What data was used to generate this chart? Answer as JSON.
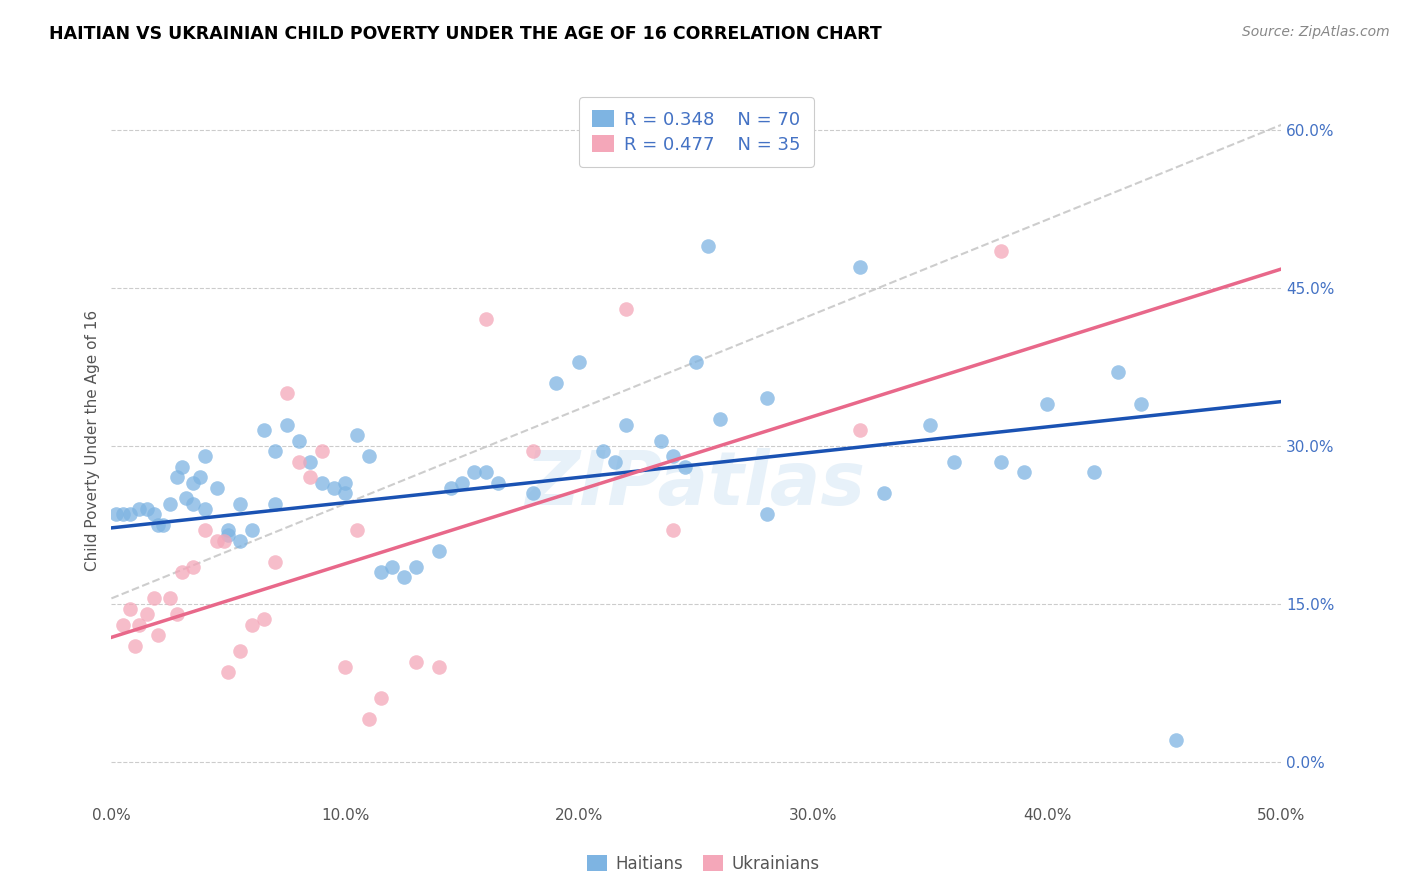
{
  "title": "HAITIAN VS UKRAINIAN CHILD POVERTY UNDER THE AGE OF 16 CORRELATION CHART",
  "source": "Source: ZipAtlas.com",
  "ylabel": "Child Poverty Under the Age of 16",
  "xlim": [
    0.0,
    0.5
  ],
  "ylim": [
    -0.04,
    0.65
  ],
  "xticks": [
    0.0,
    0.1,
    0.2,
    0.3,
    0.4,
    0.5
  ],
  "xticklabels": [
    "0.0%",
    "10.0%",
    "20.0%",
    "30.0%",
    "40.0%",
    "50.0%"
  ],
  "yticks_right": [
    0.0,
    0.15,
    0.3,
    0.45,
    0.6
  ],
  "yticklabels_right": [
    "0.0%",
    "15.0%",
    "30.0%",
    "45.0%",
    "60.0%"
  ],
  "legend_r_haitian": "R = 0.348",
  "legend_n_haitian": "N = 70",
  "legend_r_ukrainian": "R = 0.477",
  "legend_n_ukrainian": "N = 35",
  "haitian_color": "#7EB4E2",
  "ukrainian_color": "#F4A7B9",
  "haitian_line_color": "#1A52B3",
  "ukrainian_line_color": "#E8688A",
  "diagonal_line_color": "#C8C8C8",
  "watermark": "ZIPatlas",
  "haitian_points": [
    [
      0.002,
      0.235
    ],
    [
      0.005,
      0.235
    ],
    [
      0.008,
      0.235
    ],
    [
      0.012,
      0.24
    ],
    [
      0.015,
      0.24
    ],
    [
      0.018,
      0.235
    ],
    [
      0.02,
      0.225
    ],
    [
      0.022,
      0.225
    ],
    [
      0.025,
      0.245
    ],
    [
      0.028,
      0.27
    ],
    [
      0.03,
      0.28
    ],
    [
      0.032,
      0.25
    ],
    [
      0.035,
      0.245
    ],
    [
      0.035,
      0.265
    ],
    [
      0.038,
      0.27
    ],
    [
      0.04,
      0.29
    ],
    [
      0.04,
      0.24
    ],
    [
      0.045,
      0.26
    ],
    [
      0.05,
      0.215
    ],
    [
      0.05,
      0.22
    ],
    [
      0.055,
      0.21
    ],
    [
      0.055,
      0.245
    ],
    [
      0.06,
      0.22
    ],
    [
      0.065,
      0.315
    ],
    [
      0.07,
      0.295
    ],
    [
      0.07,
      0.245
    ],
    [
      0.075,
      0.32
    ],
    [
      0.08,
      0.305
    ],
    [
      0.085,
      0.285
    ],
    [
      0.09,
      0.265
    ],
    [
      0.095,
      0.26
    ],
    [
      0.1,
      0.255
    ],
    [
      0.1,
      0.265
    ],
    [
      0.105,
      0.31
    ],
    [
      0.11,
      0.29
    ],
    [
      0.115,
      0.18
    ],
    [
      0.12,
      0.185
    ],
    [
      0.125,
      0.175
    ],
    [
      0.13,
      0.185
    ],
    [
      0.14,
      0.2
    ],
    [
      0.145,
      0.26
    ],
    [
      0.15,
      0.265
    ],
    [
      0.155,
      0.275
    ],
    [
      0.16,
      0.275
    ],
    [
      0.165,
      0.265
    ],
    [
      0.18,
      0.255
    ],
    [
      0.19,
      0.36
    ],
    [
      0.2,
      0.38
    ],
    [
      0.21,
      0.295
    ],
    [
      0.215,
      0.285
    ],
    [
      0.22,
      0.32
    ],
    [
      0.235,
      0.305
    ],
    [
      0.24,
      0.29
    ],
    [
      0.245,
      0.28
    ],
    [
      0.25,
      0.38
    ],
    [
      0.255,
      0.49
    ],
    [
      0.26,
      0.325
    ],
    [
      0.28,
      0.345
    ],
    [
      0.32,
      0.47
    ],
    [
      0.35,
      0.32
    ],
    [
      0.36,
      0.285
    ],
    [
      0.38,
      0.285
    ],
    [
      0.39,
      0.275
    ],
    [
      0.4,
      0.34
    ],
    [
      0.42,
      0.275
    ],
    [
      0.43,
      0.37
    ],
    [
      0.44,
      0.34
    ],
    [
      0.455,
      0.02
    ],
    [
      0.33,
      0.255
    ],
    [
      0.28,
      0.235
    ]
  ],
  "ukrainian_points": [
    [
      0.005,
      0.13
    ],
    [
      0.008,
      0.145
    ],
    [
      0.01,
      0.11
    ],
    [
      0.012,
      0.13
    ],
    [
      0.015,
      0.14
    ],
    [
      0.018,
      0.155
    ],
    [
      0.02,
      0.12
    ],
    [
      0.025,
      0.155
    ],
    [
      0.028,
      0.14
    ],
    [
      0.03,
      0.18
    ],
    [
      0.035,
      0.185
    ],
    [
      0.04,
      0.22
    ],
    [
      0.045,
      0.21
    ],
    [
      0.048,
      0.21
    ],
    [
      0.05,
      0.085
    ],
    [
      0.055,
      0.105
    ],
    [
      0.06,
      0.13
    ],
    [
      0.065,
      0.135
    ],
    [
      0.07,
      0.19
    ],
    [
      0.075,
      0.35
    ],
    [
      0.08,
      0.285
    ],
    [
      0.085,
      0.27
    ],
    [
      0.09,
      0.295
    ],
    [
      0.1,
      0.09
    ],
    [
      0.105,
      0.22
    ],
    [
      0.11,
      0.04
    ],
    [
      0.115,
      0.06
    ],
    [
      0.13,
      0.095
    ],
    [
      0.14,
      0.09
    ],
    [
      0.16,
      0.42
    ],
    [
      0.18,
      0.295
    ],
    [
      0.22,
      0.43
    ],
    [
      0.24,
      0.22
    ],
    [
      0.38,
      0.485
    ],
    [
      0.32,
      0.315
    ]
  ],
  "haitian_trend": {
    "slope": 0.24,
    "intercept": 0.222
  },
  "ukrainian_trend": {
    "slope": 0.7,
    "intercept": 0.118
  },
  "diagonal": {
    "slope": 0.9,
    "intercept": 0.155
  },
  "figsize": [
    14.06,
    8.92
  ],
  "dpi": 100
}
